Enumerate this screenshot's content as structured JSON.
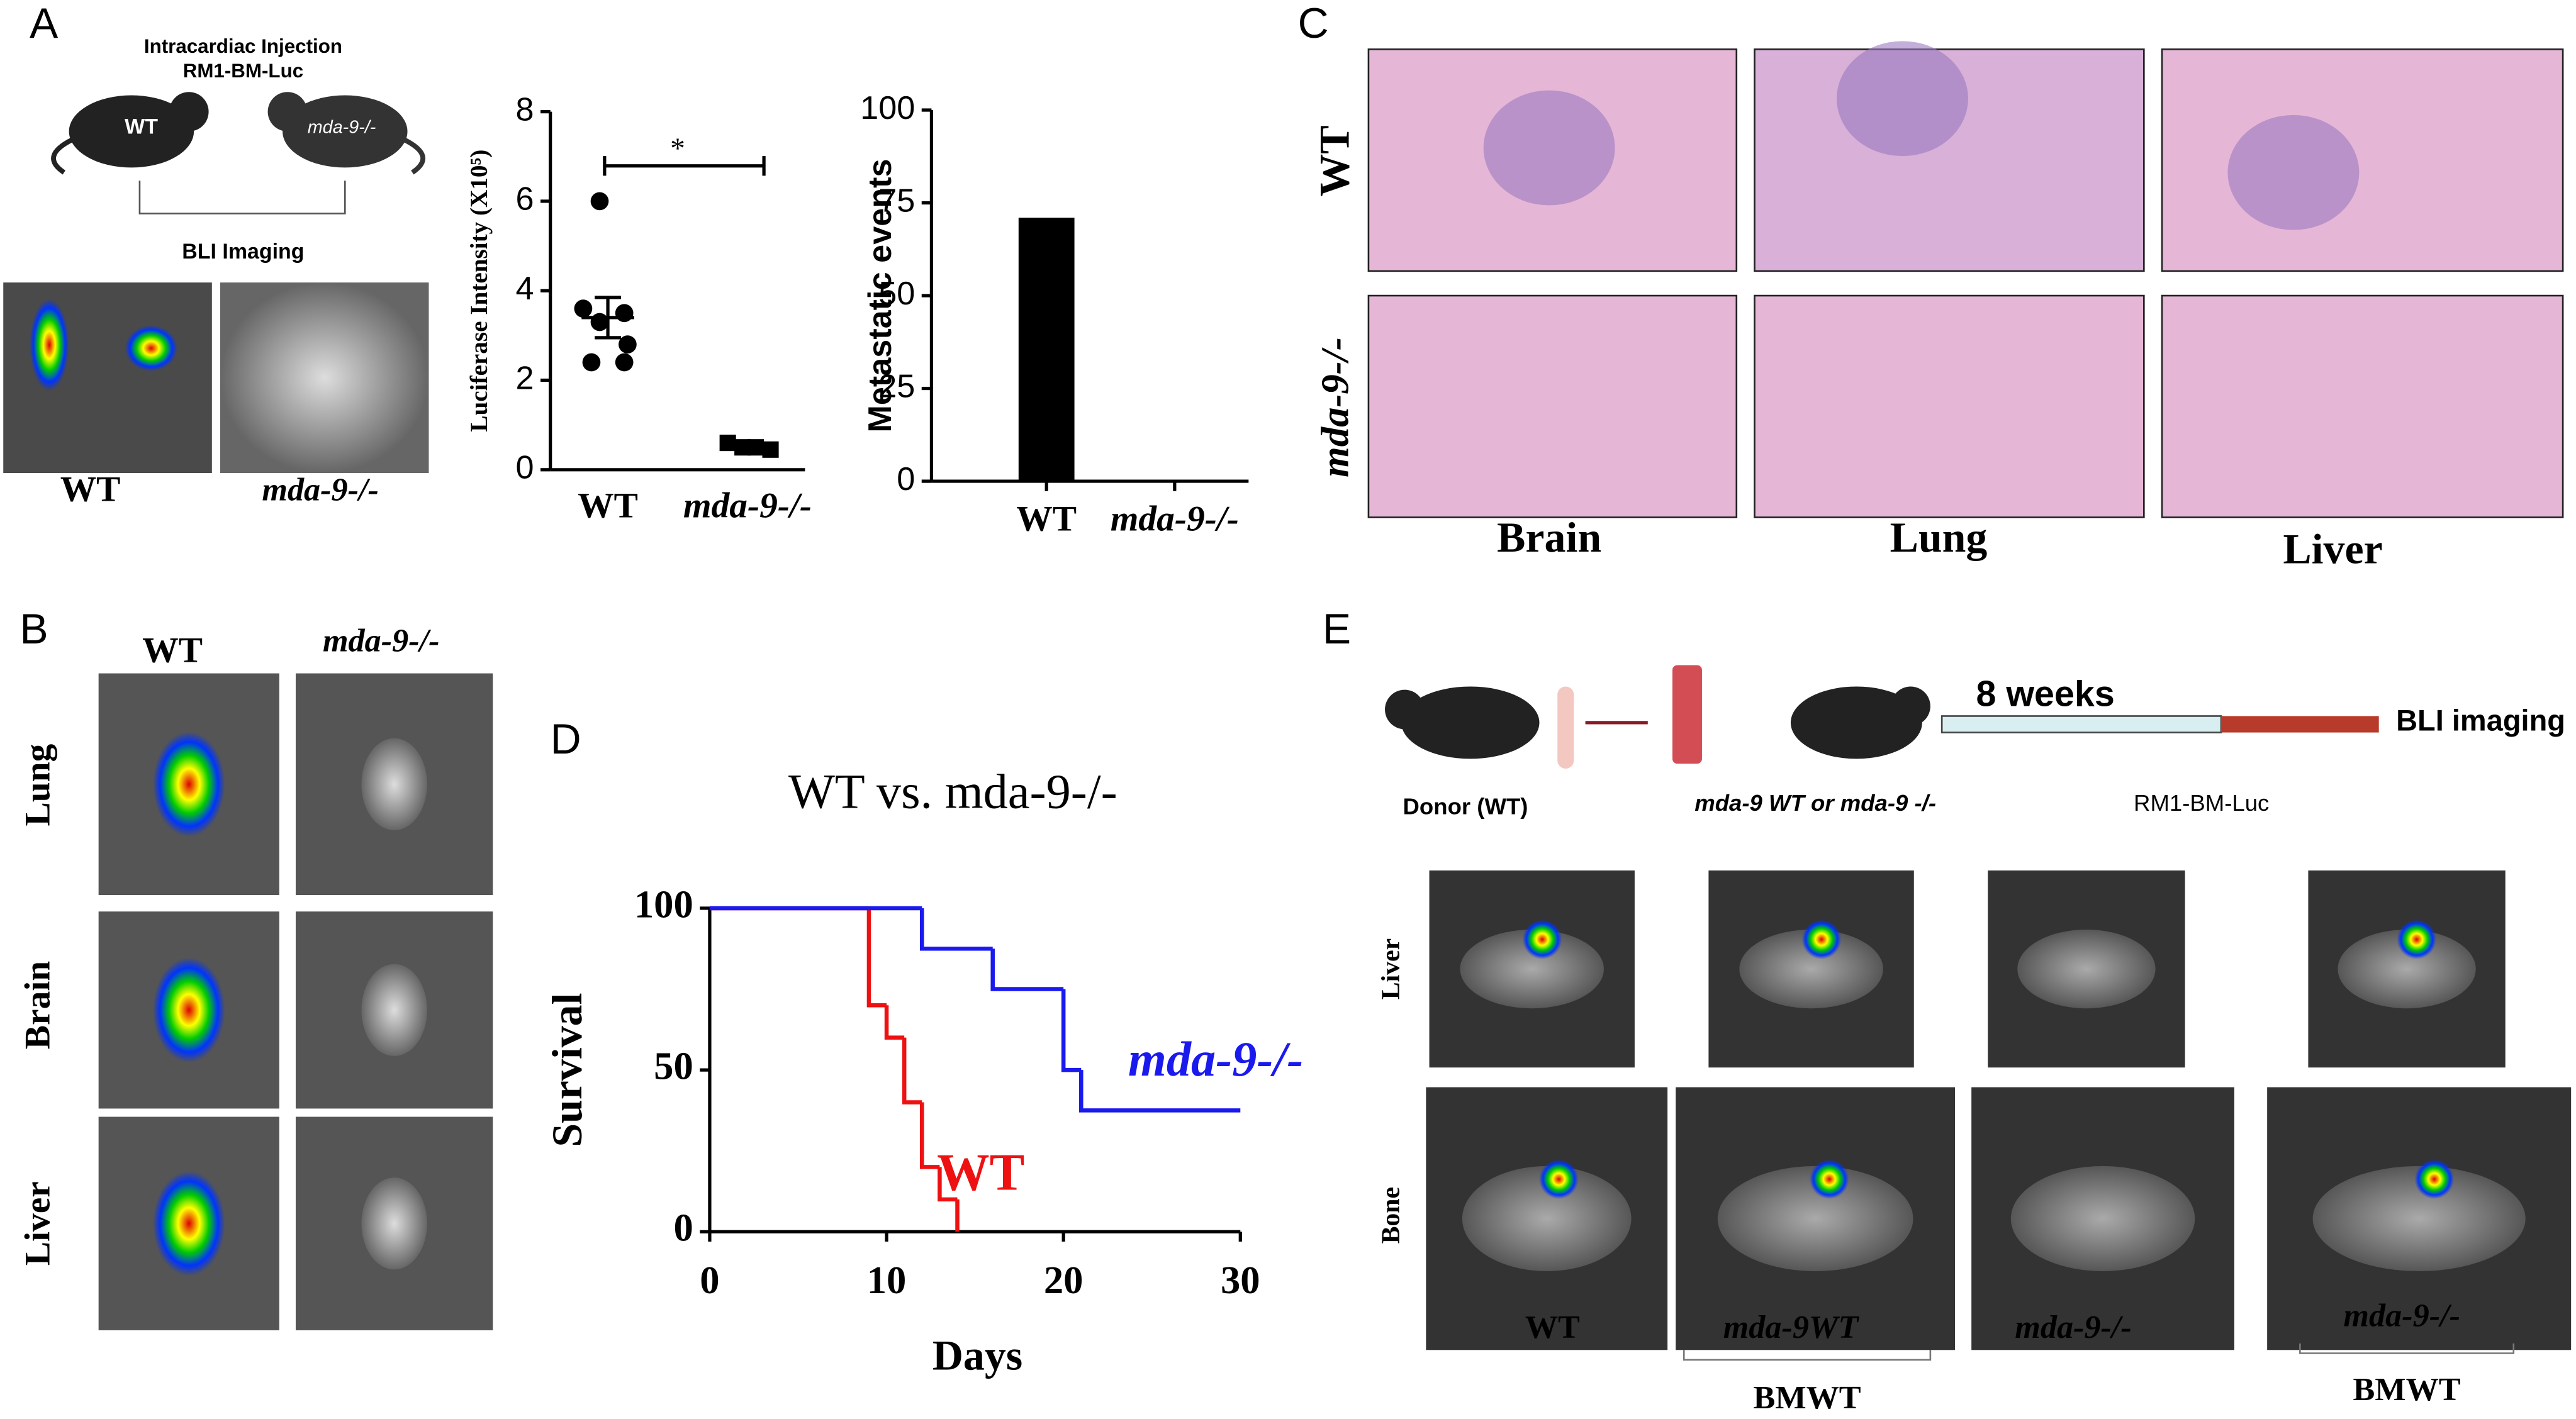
{
  "panel_labels": [
    "A",
    "B",
    "C",
    "D",
    "E"
  ],
  "panel_a": {
    "schematic_title": "Intracardiac Injection",
    "schematic_line": "RM1-BM-Luc",
    "mouse_left": "WT",
    "mouse_right": "mda-9-/-",
    "imaging": "BLI Imaging",
    "image_left": "WT",
    "image_right": "mda-9-/-"
  },
  "panel_b": {
    "columns": [
      "WT",
      "mda-9-/-"
    ],
    "rows": [
      "Lung",
      "Brain",
      "Liver"
    ]
  },
  "panel_c": {
    "rows": [
      "WT",
      "mda-9-/-"
    ],
    "columns": [
      "Brain",
      "Lung",
      "Liver"
    ]
  },
  "panel_e": {
    "donor": "Donor (WT)",
    "recipient": "mda-9 WT or mda-9 -/-",
    "duration": "8 weeks",
    "injection": "RM1-BM-Luc",
    "readout": "BLI imaging",
    "rows": [
      "Liver",
      "Bone"
    ],
    "columns": [
      "WT",
      "mda-9WT",
      "mda-9-/-",
      "mda-9-/-"
    ],
    "bracket_label": "BMWT",
    "bracket_label_2": "BMWT"
  },
  "chart_data": [
    {
      "type": "scatter",
      "y_label": "Luciferase Intensity (X10⁵)",
      "categories": [
        "WT",
        "mda-9-/-"
      ],
      "ylim": [
        0,
        8
      ],
      "yticks": [
        0,
        2,
        4,
        6,
        8
      ],
      "significance": "*",
      "series": [
        {
          "color": "#000000",
          "marker": "circle",
          "values": [
            6.0,
            3.6,
            3.5,
            3.3,
            2.8,
            2.4,
            2.4
          ]
        },
        {
          "color": "#000000",
          "marker": "square",
          "values": [
            0.6,
            0.5,
            0.5,
            0.45
          ]
        }
      ],
      "means": [
        3.4,
        0.52
      ],
      "sem": [
        0.45,
        0.05
      ]
    },
    {
      "type": "bar",
      "y_label": "Metastatic events",
      "categories": [
        "WT",
        "mda-9-/-"
      ],
      "values": [
        71,
        0
      ],
      "color": "#000000",
      "ylim": [
        0,
        100
      ],
      "yticks": [
        0,
        25,
        50,
        75,
        100
      ]
    },
    {
      "type": "line",
      "title": "WT vs. mda-9-/-",
      "x_label": "Days",
      "y_label": "Survival",
      "xlim": [
        0,
        30
      ],
      "xticks": [
        0,
        10,
        20,
        30
      ],
      "ylim": [
        0,
        100
      ],
      "yticks": [
        0,
        50,
        100
      ],
      "series": [
        {
          "name": "WT",
          "color": "#ee1111",
          "x": [
            0,
            9,
            10,
            11,
            12,
            13,
            14
          ],
          "values": [
            100,
            70,
            60,
            40,
            20,
            10,
            0
          ]
        },
        {
          "name": "mda-9-/-",
          "color": "#1a1aee",
          "x": [
            0,
            12,
            16,
            20,
            21,
            30
          ],
          "values": [
            100,
            87.5,
            75,
            50,
            37.5,
            37.5
          ]
        }
      ]
    }
  ]
}
